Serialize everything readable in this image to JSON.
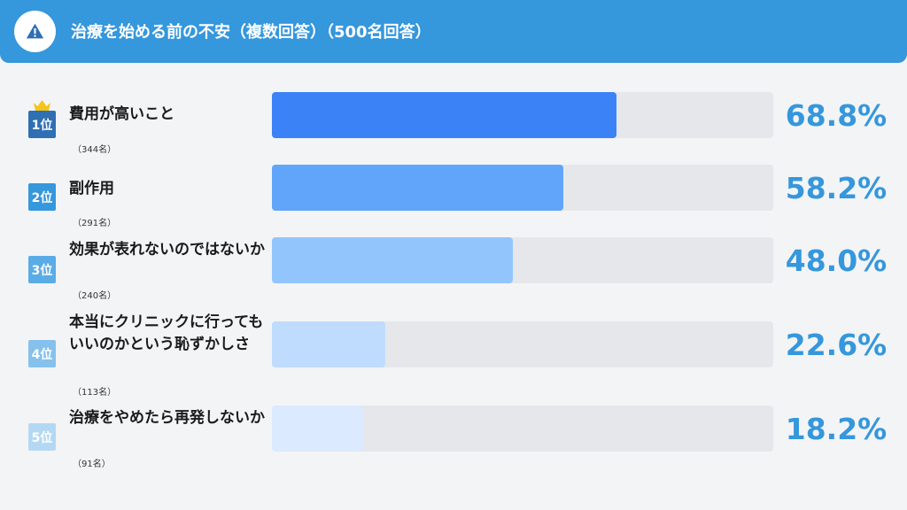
{
  "header": {
    "title": "治療を始める前の不安（複数回答）（500名回答）",
    "icon": "warning-icon",
    "background": "#3597dc"
  },
  "chart_data": {
    "type": "bar",
    "orientation": "horizontal",
    "title": "治療を始める前の不安（複数回答）（500名回答）",
    "xlim": [
      0,
      100
    ],
    "categories": [
      "費用が高いこと",
      "副作用",
      "効果が表れないのではないか",
      "本当にクリニックに行ってもいいのかという恥ずかしさ",
      "治療をやめたら再発しないか"
    ],
    "values": [
      68.8,
      58.2,
      48.0,
      22.6,
      18.2
    ],
    "items": [
      {
        "rank": "1位",
        "label": "費用が高いこと",
        "count": "（344名）",
        "value": 68.8,
        "pct": "68.8%",
        "bar_color": "#3b82f6",
        "badge_color": "#2f6fb3"
      },
      {
        "rank": "2位",
        "label": "副作用",
        "count": "（291名）",
        "value": 58.2,
        "pct": "58.2%",
        "bar_color": "#60a5fa",
        "badge_color": "#3597dc"
      },
      {
        "rank": "3位",
        "label": "効果が表れないのではないか",
        "count": "（240名）",
        "value": 48.0,
        "pct": "48.0%",
        "bar_color": "#93c5fd",
        "badge_color": "#5aace6"
      },
      {
        "rank": "4位",
        "label": "本当にクリニックに行ってもいいのかという恥ずかしさ",
        "count": "（113名）",
        "value": 22.6,
        "pct": "22.6%",
        "bar_color": "#bfdbfe",
        "badge_color": "#85c1ec"
      },
      {
        "rank": "5位",
        "label": "治療をやめたら再発しないか",
        "count": "（91名）",
        "value": 18.2,
        "pct": "18.2%",
        "bar_color": "#dbeafe",
        "badge_color": "#b4d8f3"
      }
    ],
    "track_color": "#e5e7eb",
    "pct_color": "#3597dc",
    "crown_icon": "crown-icon",
    "crown_color": "#f5c518"
  }
}
